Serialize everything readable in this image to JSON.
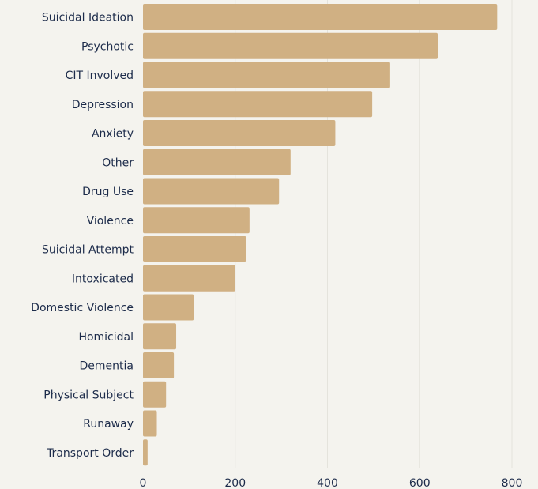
{
  "chart_data": {
    "type": "bar",
    "orientation": "horizontal",
    "title": "",
    "xlabel": "",
    "ylabel": "",
    "categories": [
      "Suicidal Ideation",
      "Psychotic",
      "CIT Involved",
      "Depression",
      "Anxiety",
      "Other",
      "Drug Use",
      "Violence",
      "Suicidal Attempt",
      "Intoxicated",
      "Domestic Violence",
      "Homicidal",
      "Dementia",
      "Physical Subject",
      "Runaway",
      "Transport Order"
    ],
    "values": [
      768,
      639,
      536,
      497,
      417,
      320,
      295,
      231,
      224,
      200,
      110,
      72,
      67,
      50,
      30,
      10
    ],
    "xlim": [
      0,
      800
    ],
    "x_ticks": [
      0,
      200,
      400,
      600,
      800
    ],
    "grid": true,
    "legend": "none",
    "bar_color": "#d0b083",
    "text_color": "#1c2b4a",
    "background_color": "#f4f3ee"
  }
}
